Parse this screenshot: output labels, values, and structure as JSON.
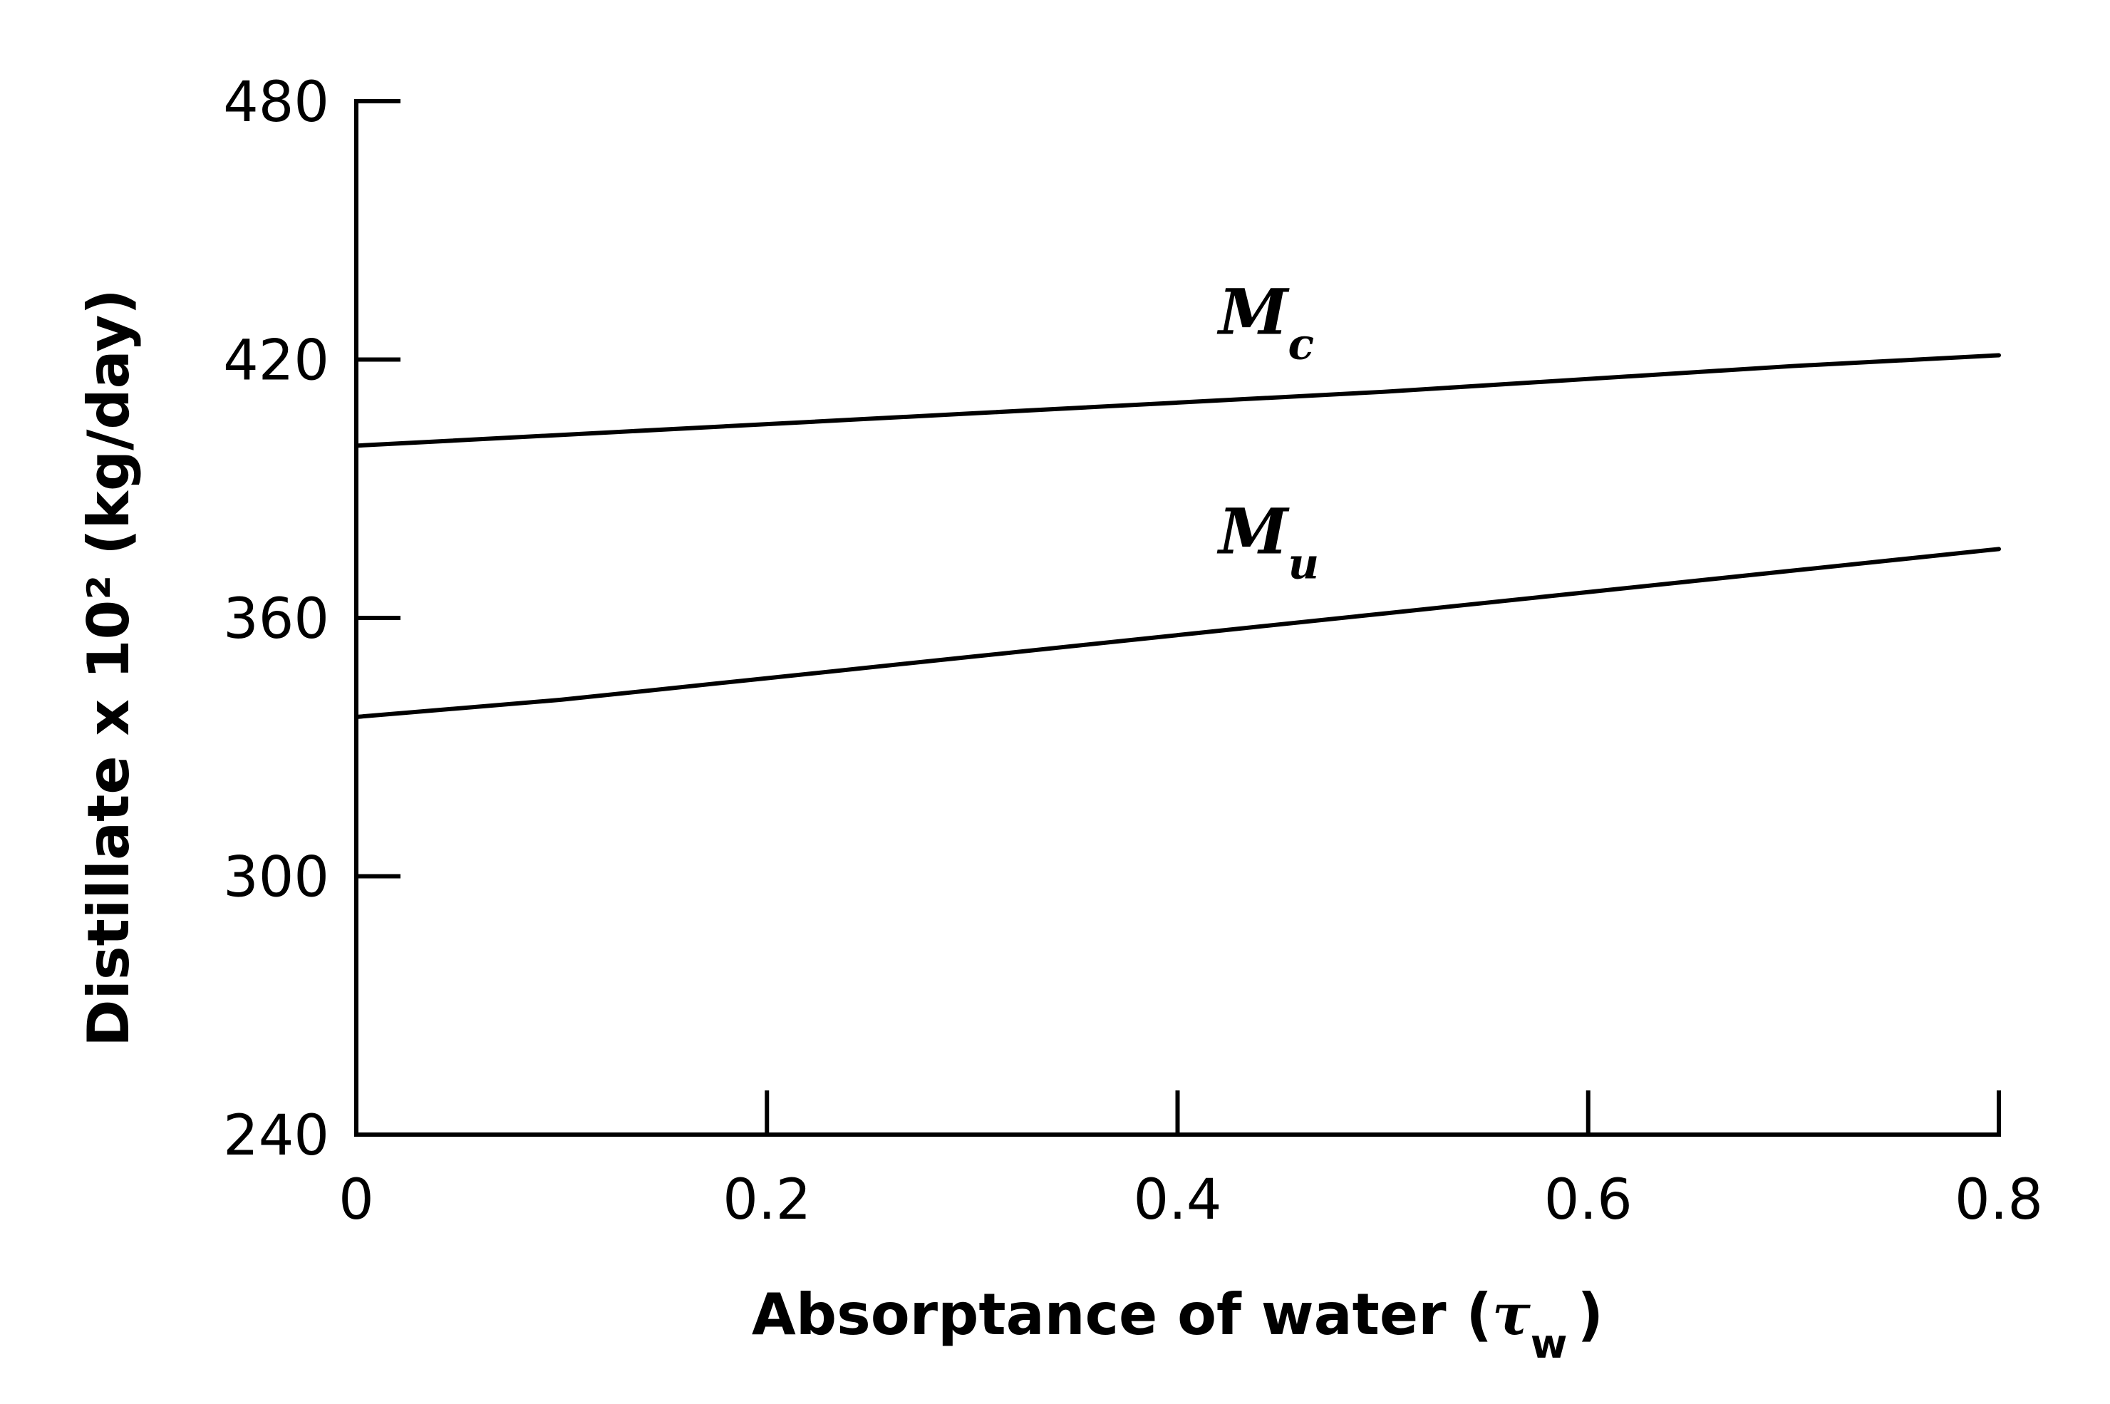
{
  "chart_data": {
    "type": "line",
    "title": "",
    "xlabel": "Absorptance of water (τw)",
    "xlabel_parts": {
      "main": "Absorptance of water (",
      "symbol": "τ",
      "sub": "w",
      "close": ")"
    },
    "ylabel": "Distillate x 10² (kg/day)",
    "xlim": [
      0,
      0.8
    ],
    "ylim": [
      240,
      480
    ],
    "x_ticks": [
      0,
      0.2,
      0.4,
      0.6,
      0.8
    ],
    "x_tick_labels": [
      "0",
      "0.2",
      "0.4",
      "0.6",
      "0.8"
    ],
    "y_ticks": [
      240,
      300,
      360,
      420,
      480
    ],
    "y_tick_labels": [
      "240",
      "300",
      "360",
      "420",
      "480"
    ],
    "grid": false,
    "series": [
      {
        "name": "Mc",
        "label_main": "M",
        "label_sub": "c",
        "label_at": [
          0.42,
          426
        ],
        "x": [
          0,
          0.1,
          0.2,
          0.3,
          0.4,
          0.5,
          0.6,
          0.7,
          0.8
        ],
        "values": [
          400,
          402.5,
          405,
          407.5,
          410,
          412.5,
          415.5,
          418.5,
          421
        ]
      },
      {
        "name": "Mu",
        "label_main": "M",
        "label_sub": "u",
        "label_at": [
          0.42,
          375
        ],
        "x": [
          0,
          0.1,
          0.2,
          0.3,
          0.4,
          0.5,
          0.6,
          0.7,
          0.8
        ],
        "values": [
          337,
          341,
          346,
          351,
          356,
          361,
          366,
          371,
          376
        ]
      }
    ]
  }
}
